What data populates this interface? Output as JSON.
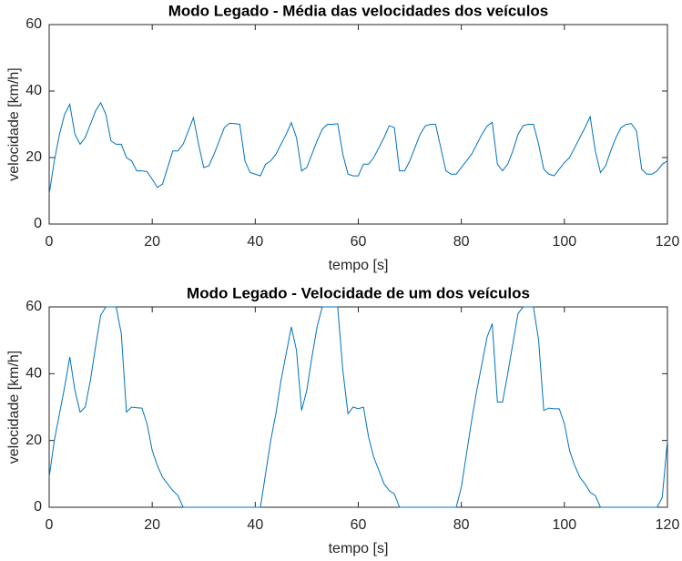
{
  "chart_data": [
    {
      "type": "line",
      "title": "Modo Legado - Média das velocidades dos veículos",
      "xlabel": "tempo [s]",
      "ylabel": "velocidade [km/h]",
      "color": "#0072bd",
      "xlim": [
        0,
        120
      ],
      "ylim": [
        0,
        60
      ],
      "xticks": [
        0,
        20,
        40,
        60,
        80,
        100,
        120
      ],
      "yticks": [
        0,
        20,
        40,
        60
      ],
      "x": [
        0,
        1,
        2,
        3,
        4,
        5,
        6,
        7,
        8,
        9,
        10,
        11,
        12,
        13,
        14,
        15,
        16,
        17,
        18,
        19,
        20,
        21,
        22,
        23,
        24,
        25,
        26,
        27,
        28,
        29,
        30,
        31,
        32,
        33,
        34,
        35,
        36,
        37,
        38,
        39,
        40,
        41,
        42,
        43,
        44,
        45,
        46,
        47,
        48,
        49,
        50,
        51,
        52,
        53,
        54,
        55,
        56,
        57,
        58,
        59,
        60,
        61,
        62,
        63,
        64,
        65,
        66,
        67,
        68,
        69,
        70,
        71,
        72,
        73,
        74,
        75,
        76,
        77,
        78,
        79,
        80,
        81,
        82,
        83,
        84,
        85,
        86,
        87,
        88,
        89,
        90,
        91,
        92,
        93,
        94,
        95,
        96,
        97,
        98,
        99,
        100,
        101,
        102,
        103,
        104,
        105,
        106,
        107,
        108,
        109,
        110,
        111,
        112,
        113,
        114,
        115,
        116,
        117,
        118,
        119,
        120
      ],
      "values": [
        9,
        19,
        27,
        33,
        36,
        27,
        24,
        26,
        30,
        34,
        36.5,
        33,
        25,
        24,
        24,
        20,
        19,
        16,
        16,
        15.8,
        13.5,
        11,
        12,
        17,
        22,
        22,
        24,
        28,
        32,
        24,
        17,
        17.5,
        21,
        25,
        29,
        30.3,
        30.2,
        30,
        19,
        15.5,
        15,
        14.5,
        18,
        19,
        21,
        24,
        27,
        30.5,
        26,
        16,
        17,
        21,
        25,
        28.5,
        30,
        30,
        30.2,
        21,
        15,
        14.5,
        14.5,
        18,
        18,
        20,
        23,
        26,
        29.6,
        29,
        16,
        16,
        19,
        23,
        27,
        29.5,
        30,
        30,
        23,
        16,
        15,
        15,
        17,
        19,
        21,
        24,
        27,
        29.5,
        30.6,
        18,
        16,
        18,
        22,
        27,
        29.6,
        30,
        30,
        24,
        16.5,
        15,
        14.5,
        16.5,
        18.5,
        20,
        23,
        26,
        29,
        32.3,
        22,
        15.5,
        17.5,
        22,
        26,
        29,
        30,
        30.2,
        28,
        16.5,
        15,
        15,
        16,
        18,
        19
      ]
    },
    {
      "type": "line",
      "title": "Modo Legado - Velocidade de um dos veículos",
      "xlabel": "tempo [s]",
      "ylabel": "velocidade [km/h]",
      "color": "#0072bd",
      "xlim": [
        0,
        120
      ],
      "ylim": [
        0,
        60
      ],
      "xticks": [
        0,
        20,
        40,
        60,
        80,
        100,
        120
      ],
      "yticks": [
        0,
        20,
        40,
        60
      ],
      "x": [
        0,
        1,
        2,
        3,
        4,
        5,
        6,
        7,
        8,
        9,
        10,
        11,
        12,
        13,
        14,
        15,
        16,
        17,
        18,
        19,
        20,
        21,
        22,
        23,
        24,
        25,
        26,
        27,
        28,
        29,
        30,
        31,
        32,
        33,
        34,
        35,
        36,
        37,
        38,
        39,
        40,
        41,
        42,
        43,
        44,
        45,
        46,
        47,
        48,
        49,
        50,
        51,
        52,
        53,
        54,
        55,
        56,
        57,
        58,
        59,
        60,
        61,
        62,
        63,
        64,
        65,
        66,
        67,
        68,
        69,
        70,
        71,
        72,
        73,
        74,
        75,
        76,
        77,
        78,
        79,
        80,
        81,
        82,
        83,
        84,
        85,
        86,
        87,
        88,
        89,
        90,
        91,
        92,
        93,
        94,
        95,
        96,
        97,
        98,
        99,
        100,
        101,
        102,
        103,
        104,
        105,
        106,
        107,
        108,
        109,
        110,
        111,
        112,
        113,
        114,
        115,
        116,
        117,
        118,
        119,
        120
      ],
      "values": [
        9,
        20,
        28,
        36,
        45,
        35,
        28.5,
        30,
        38,
        48,
        57.5,
        60,
        60,
        60,
        52,
        28.5,
        30,
        29.8,
        29.7,
        25,
        17,
        12.5,
        9,
        7,
        5,
        3.5,
        0,
        0,
        0,
        0,
        0,
        0,
        0,
        0,
        0,
        0,
        0,
        0,
        0,
        0,
        0,
        0,
        10,
        20,
        28,
        38,
        46,
        54,
        47,
        29,
        35,
        45,
        54,
        60,
        60,
        60,
        60,
        41,
        28,
        30,
        29.5,
        30,
        21,
        15,
        11,
        7,
        5,
        4,
        0,
        0,
        0,
        0,
        0,
        0,
        0,
        0,
        0,
        0,
        0,
        0,
        6,
        16,
        26,
        35,
        43,
        51,
        55,
        31.5,
        31.5,
        40,
        49,
        58,
        60,
        60,
        60,
        50,
        29,
        29.7,
        29.5,
        29.5,
        25,
        17,
        12.5,
        9,
        7,
        4.5,
        3.5,
        0,
        0,
        0,
        0,
        0,
        0,
        0,
        0,
        0,
        0,
        0,
        0,
        3,
        20
      ]
    }
  ]
}
